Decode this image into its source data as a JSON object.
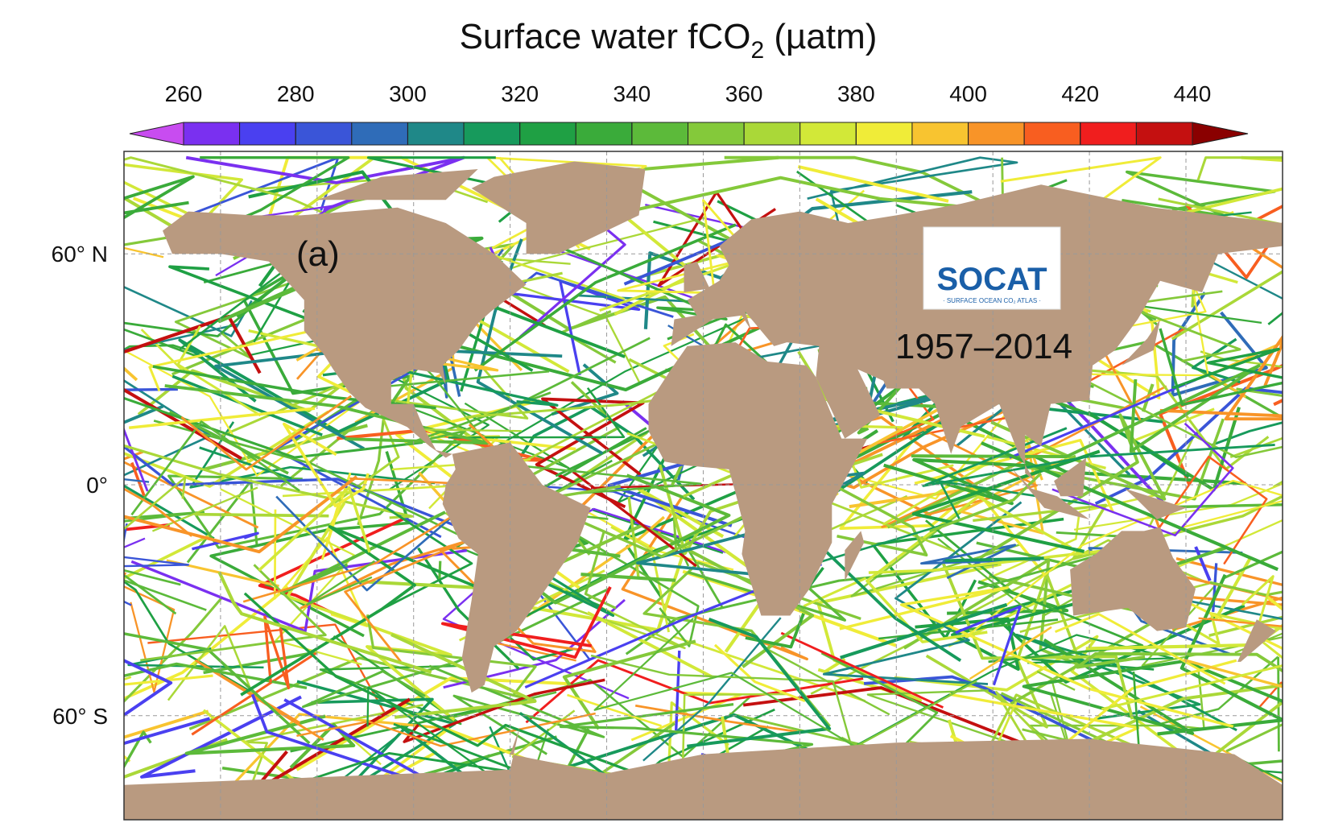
{
  "title": {
    "main": "Surface water fCO",
    "subscript": "2",
    "unit": " (µatm)"
  },
  "colorbar": {
    "clim": [
      260,
      440
    ],
    "step": 10,
    "ticks": [
      260,
      280,
      300,
      320,
      340,
      360,
      380,
      400,
      420,
      440
    ],
    "colors": [
      "#7a30f0",
      "#4a40f0",
      "#3a55d8",
      "#2f6cb8",
      "#1f8888",
      "#179a5c",
      "#1fa044",
      "#3aab3a",
      "#5cba3a",
      "#84c93a",
      "#aad838",
      "#d2e838",
      "#f0ec38",
      "#f8c430",
      "#f89428",
      "#f85e20",
      "#f01e1e",
      "#c41010"
    ],
    "under_color": "#c84cf0",
    "over_color": "#8a0000"
  },
  "map": {
    "lat_labels": [
      {
        "value": 60,
        "label": "60° N"
      },
      {
        "value": 0,
        "label": "0°"
      },
      {
        "value": -60,
        "label": "60° S"
      }
    ],
    "panel_label": "(a)",
    "period": "1957–2014",
    "land_color": "#b99a80"
  },
  "logo": {
    "name": "SOCAT",
    "subtitle": "· SURFACE OCEAN CO₂ ATLAS ·"
  }
}
